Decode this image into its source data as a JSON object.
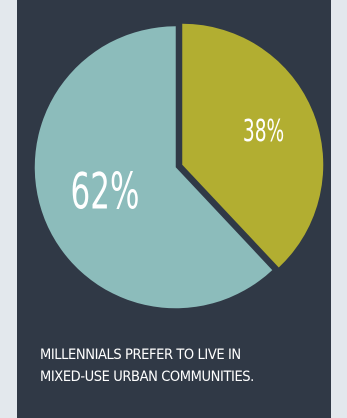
{
  "chart_data": {
    "type": "pie",
    "slices": [
      {
        "label": "62%",
        "value": 62,
        "color": "#8cbcbb"
      },
      {
        "label": "38%",
        "value": 38,
        "color": "#b2ae31"
      }
    ],
    "title": "",
    "legend": "none"
  },
  "caption": {
    "line1": "MILLENNIALS PREFER TO LIVE IN",
    "line2": "MIXED-USE URBAN COMMUNITIES."
  },
  "colors": {
    "background": "#e3e8ed",
    "panel": "#303946",
    "text": "#ffffff"
  }
}
